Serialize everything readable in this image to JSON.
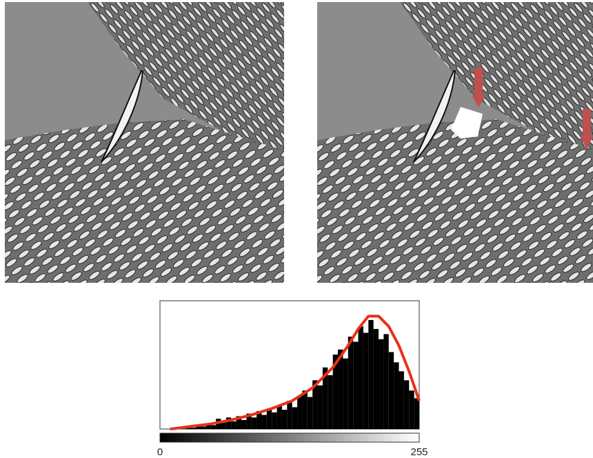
{
  "chart_data": {
    "type": "histogram",
    "bins": [
      0,
      5,
      10,
      15,
      20,
      25,
      30,
      35,
      40,
      45,
      50,
      55,
      60,
      65,
      70,
      75,
      80,
      85,
      90,
      95,
      100,
      105,
      110,
      115,
      120,
      125,
      130,
      135,
      140,
      145,
      150,
      155,
      160,
      165,
      170,
      175,
      180,
      185,
      190,
      195,
      200,
      205,
      210,
      215,
      220,
      225,
      230,
      235,
      240,
      245,
      250,
      255
    ],
    "values": [
      0,
      0,
      0,
      1,
      0,
      2,
      1,
      3,
      2,
      4,
      3,
      8,
      5,
      9,
      6,
      10,
      7,
      12,
      9,
      14,
      11,
      16,
      13,
      18,
      15,
      22,
      17,
      26,
      30,
      25,
      38,
      34,
      48,
      42,
      58,
      62,
      55,
      72,
      68,
      80,
      75,
      85,
      78,
      70,
      74,
      60,
      52,
      45,
      38,
      30,
      24
    ],
    "color": "#000000",
    "curve": {
      "color": "#e8311a",
      "x": [
        10,
        30,
        50,
        70,
        90,
        110,
        130,
        150,
        170,
        185,
        195,
        205,
        215,
        225,
        235,
        245,
        255
      ],
      "values": [
        0,
        2,
        4,
        7,
        11,
        16,
        22,
        32,
        48,
        65,
        78,
        88,
        88,
        80,
        65,
        45,
        22
      ]
    },
    "xlim": [
      0,
      255
    ],
    "xticks": [
      0,
      255
    ],
    "ylim": [
      0,
      100
    ]
  }
}
